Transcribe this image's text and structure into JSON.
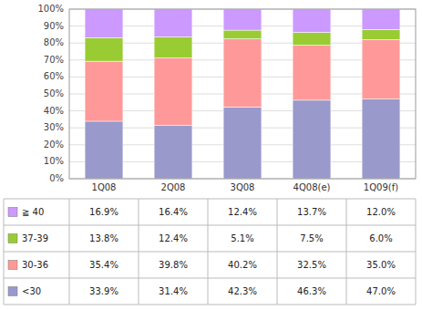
{
  "chart_data": {
    "type": "bar",
    "stacked": true,
    "grid": true,
    "categories": [
      "1Q08",
      "2Q08",
      "3Q08",
      "4Q08(e)",
      "1Q09(f)"
    ],
    "series": [
      {
        "name": "<30",
        "color": "#9999cc",
        "values": [
          33.9,
          31.4,
          42.3,
          46.3,
          47.0
        ],
        "value_labels": [
          "33.9%",
          "31.4%",
          "42.3%",
          "46.3%",
          "47.0%"
        ]
      },
      {
        "name": "30-36",
        "color": "#ff9999",
        "values": [
          35.4,
          39.8,
          40.2,
          32.5,
          35.0
        ],
        "value_labels": [
          "35.4%",
          "39.8%",
          "40.2%",
          "32.5%",
          "35.0%"
        ]
      },
      {
        "name": "37-39",
        "color": "#99cc33",
        "values": [
          13.8,
          12.4,
          5.1,
          7.5,
          6.0
        ],
        "value_labels": [
          "13.8%",
          "12.4%",
          "5.1%",
          "7.5%",
          "6.0%"
        ]
      },
      {
        "name": "≧ 40",
        "color": "#cc99ff",
        "values": [
          16.9,
          16.4,
          12.4,
          13.7,
          12.0
        ],
        "value_labels": [
          "16.9%",
          "16.4%",
          "12.4%",
          "13.7%",
          "12.0%"
        ]
      }
    ],
    "ylim": [
      0,
      100
    ],
    "yticks": [
      {
        "value": 0,
        "label": "0%"
      },
      {
        "value": 10,
        "label": "10%"
      },
      {
        "value": 20,
        "label": "20%"
      },
      {
        "value": 30,
        "label": "30%"
      },
      {
        "value": 40,
        "label": "40%"
      },
      {
        "value": 50,
        "label": "50%"
      },
      {
        "value": 60,
        "label": "60%"
      },
      {
        "value": 70,
        "label": "70%"
      },
      {
        "value": 80,
        "label": "80%"
      },
      {
        "value": 90,
        "label": "90%"
      },
      {
        "value": 100,
        "label": "100%"
      }
    ]
  }
}
